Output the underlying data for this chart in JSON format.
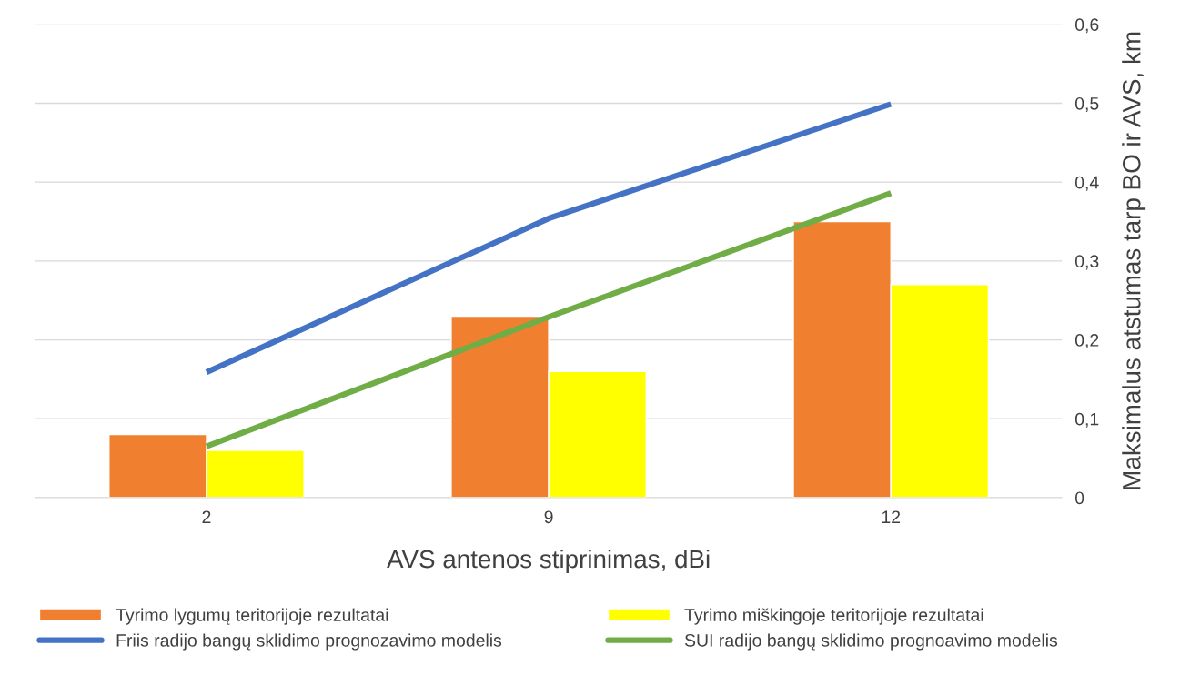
{
  "chart_data": {
    "type": "bar",
    "xlabel": "AVS antenos stiprinimas, dBi",
    "ylabel": "Maksimalus atstumas tarp BO ir AVS, km",
    "categories": [
      "2",
      "9",
      "12"
    ],
    "series": [
      {
        "name": "Tyrimo lygumų teritorijoje rezultatai",
        "color": "#f07f2f",
        "values": [
          0.08,
          0.23,
          0.35
        ]
      },
      {
        "name": "Tyrimo miškingoje teritorijoje rezultatai",
        "color": "#ffff00",
        "values": [
          0.06,
          0.16,
          0.27
        ]
      },
      {
        "name": "Friis radijo bangų sklidimo prognozavimo modelis",
        "type": "line",
        "color": "#4472c4",
        "values": [
          0.159,
          0.354,
          0.499
        ]
      },
      {
        "name": "SUI radijo bangų sklidimo prognoavimo modelis",
        "type": "line",
        "color": "#70ad47",
        "values": [
          0.065,
          0.229,
          0.386
        ]
      }
    ],
    "ylim": [
      0,
      0.6
    ],
    "yticks": [
      0,
      {
        "value": 0.1,
        "label": "0,1"
      },
      {
        "value": 0.2,
        "label": "0,2"
      },
      {
        "value": 0.3,
        "label": "0,3"
      },
      {
        "value": 0.4,
        "label": "0,4"
      },
      {
        "value": 0.5,
        "label": "0,5"
      },
      {
        "value": 0.6,
        "label": "0,6"
      }
    ],
    "grid": "y",
    "legend": "bottom"
  }
}
